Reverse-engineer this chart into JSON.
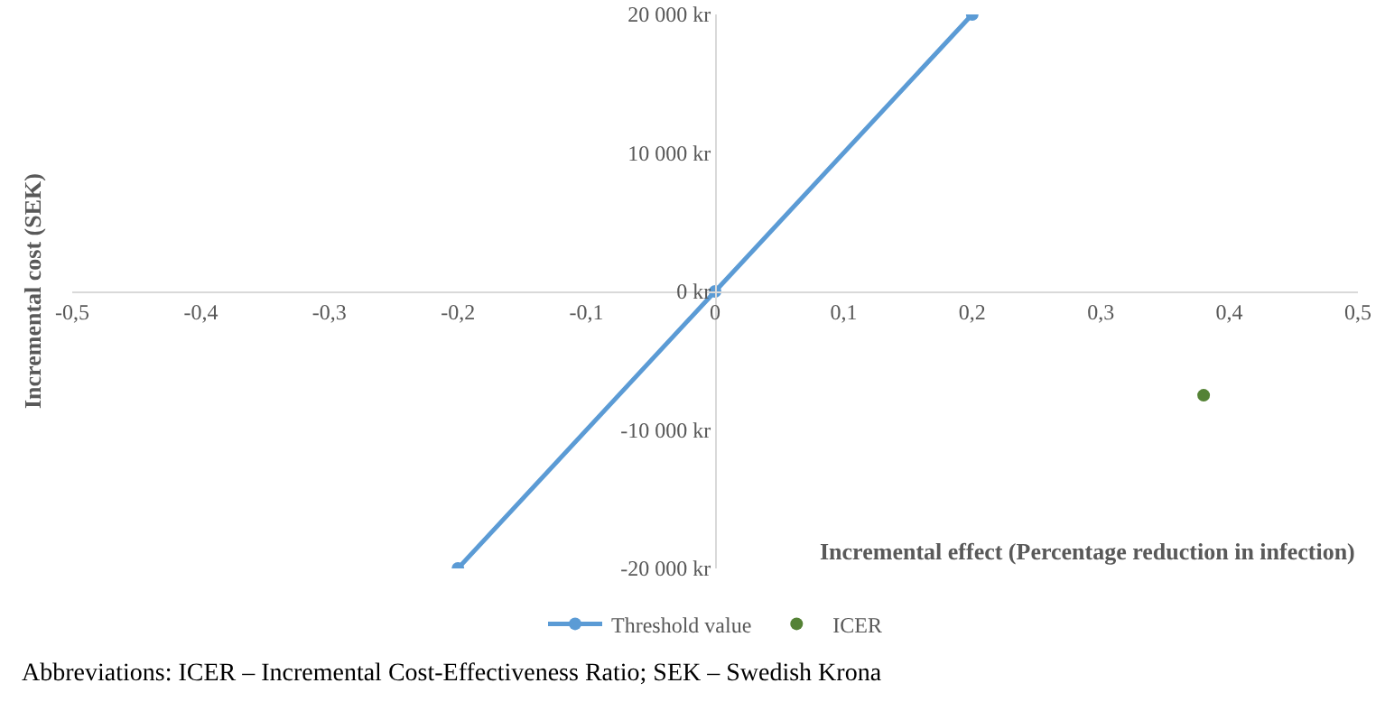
{
  "chart_data": {
    "type": "line",
    "xlabel": "Incremental effect (Percentage reduction in infection)",
    "ylabel": "Incremental cost (SEK)",
    "series": [
      {
        "name": "Threshold value",
        "color": "#5b9bd5",
        "x": [
          -0.2,
          0,
          0.2
        ],
        "values": [
          -20000,
          0,
          20000
        ]
      },
      {
        "name": "ICER",
        "type": "scatter",
        "color": "#548235",
        "x": [
          0.38
        ],
        "values": [
          -7500
        ]
      }
    ],
    "xlim": [
      -0.5,
      0.5
    ],
    "xticks": [
      {
        "value": -0.5,
        "label": "-0,5"
      },
      {
        "value": -0.4,
        "label": "-0,4"
      },
      {
        "value": -0.3,
        "label": "-0,3"
      },
      {
        "value": -0.2,
        "label": "-0,2"
      },
      {
        "value": -0.1,
        "label": "-0,1"
      },
      0,
      {
        "value": 0.1,
        "label": "0,1"
      },
      {
        "value": 0.2,
        "label": "0,2"
      },
      {
        "value": 0.3,
        "label": "0,3"
      },
      {
        "value": 0.4,
        "label": "0,4"
      },
      {
        "value": 0.5,
        "label": "0,5"
      }
    ],
    "ylim": [
      -20000,
      20000
    ],
    "yticks": [
      {
        "value": -20000,
        "label": "-20 000 kr"
      },
      {
        "value": -10000,
        "label": "-10 000 kr"
      },
      {
        "value": 0,
        "label": "0 kr"
      },
      {
        "value": 10000,
        "label": "10 000 kr"
      },
      {
        "value": 20000,
        "label": "20 000 kr"
      }
    ],
    "marker": "circle",
    "line_style": "solid",
    "legend": "bottom",
    "annotations": [
      "Abbreviations: ICER – Incremental Cost-Effectiveness Ratio; SEK – Swedish Krona"
    ]
  }
}
